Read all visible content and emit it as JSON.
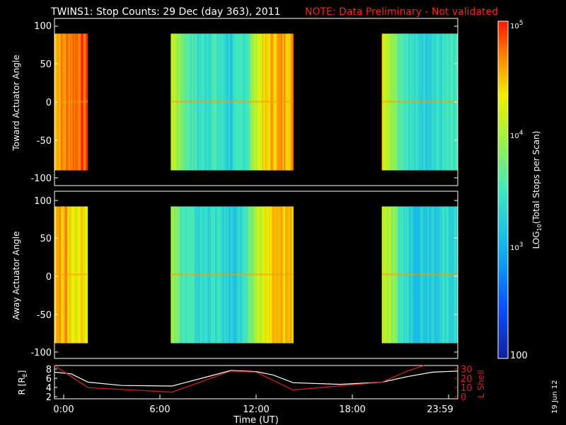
{
  "title": "TWINS1: Stop Counts: 29 Dec (day 363), 2011",
  "note": "NOTE: Data Preliminary - Not validated",
  "colors": {
    "note": "#ff2020",
    "lshell": "#e0201c",
    "rline": "#ffffff",
    "frame": "#ffffff"
  },
  "panels": [
    {
      "ylabel": "Toward Actuator Angle",
      "yticks": [
        "100",
        "50",
        "0",
        "-50",
        "-100"
      ]
    },
    {
      "ylabel": "Away Actuator Angle",
      "yticks": [
        "100",
        "50",
        "0",
        "-50",
        "-100"
      ]
    }
  ],
  "bottom": {
    "ylabel_left": "R [R",
    "ylabel_left_sub": "E",
    "ylabel_left_end": "]",
    "ylabel_right": "L Shell",
    "left_ticks": [
      "8",
      "6",
      "4",
      "2"
    ],
    "right_ticks": [
      "30",
      "20",
      "10",
      "0"
    ]
  },
  "xaxis": {
    "label": "Time (UT)",
    "ticks": [
      "0:00",
      "6:00",
      "12:00",
      "18:00",
      "23:59"
    ]
  },
  "colorbar": {
    "label_pre": "LOG",
    "label_sub": "10",
    "label_post": "(Total Stops per Scan)",
    "ticks": [
      {
        "base": "10",
        "exp": "5"
      },
      {
        "base": "10",
        "exp": "4"
      },
      {
        "base": "10",
        "exp": "3"
      },
      {
        "base": "100",
        "exp": ""
      }
    ]
  },
  "date_stamp": "19 Jun 12",
  "chart_data": {
    "type": "heatmap",
    "x_unit": "hours UT",
    "xlim": [
      0,
      24
    ],
    "ylim_angle": [
      -110,
      110
    ],
    "colorscale_range": [
      100,
      100000
    ],
    "colorscale": "log10",
    "data_segments_hours": [
      [
        -0.2,
        2.0
      ],
      [
        6.9,
        14.2
      ],
      [
        19.5,
        24.0
      ]
    ],
    "angle_coverage": [
      -90,
      90
    ],
    "panels": [
      {
        "name": "Toward Actuator Angle",
        "column_profile": [
          {
            "h": 0.0,
            "v": 4.55
          },
          {
            "h": 0.5,
            "v": 4.65
          },
          {
            "h": 1.2,
            "v": 4.8
          },
          {
            "h": 2.0,
            "v": 4.8
          },
          {
            "h": 6.9,
            "v": 4.2
          },
          {
            "h": 7.5,
            "v": 3.8
          },
          {
            "h": 8.5,
            "v": 3.4
          },
          {
            "h": 9.5,
            "v": 3.5
          },
          {
            "h": 10.5,
            "v": 3.25
          },
          {
            "h": 11.5,
            "v": 3.6
          },
          {
            "h": 12.0,
            "v": 4.2
          },
          {
            "h": 13.0,
            "v": 4.55
          },
          {
            "h": 14.2,
            "v": 4.6
          },
          {
            "h": 19.5,
            "v": 4.3
          },
          {
            "h": 20.5,
            "v": 3.7
          },
          {
            "h": 21.5,
            "v": 3.3
          },
          {
            "h": 22.5,
            "v": 3.35
          },
          {
            "h": 24.0,
            "v": 3.45
          }
        ]
      },
      {
        "name": "Away Actuator Angle",
        "column_profile": [
          {
            "h": 0.0,
            "v": 4.55
          },
          {
            "h": 0.5,
            "v": 4.6
          },
          {
            "h": 1.2,
            "v": 4.3
          },
          {
            "h": 2.0,
            "v": 4.5
          },
          {
            "h": 6.9,
            "v": 4.1
          },
          {
            "h": 7.5,
            "v": 3.55
          },
          {
            "h": 8.5,
            "v": 3.35
          },
          {
            "h": 9.5,
            "v": 3.4
          },
          {
            "h": 10.5,
            "v": 3.2
          },
          {
            "h": 11.5,
            "v": 3.5
          },
          {
            "h": 12.0,
            "v": 4.1
          },
          {
            "h": 13.0,
            "v": 4.45
          },
          {
            "h": 14.2,
            "v": 4.55
          },
          {
            "h": 19.5,
            "v": 4.2
          },
          {
            "h": 20.5,
            "v": 3.5
          },
          {
            "h": 21.5,
            "v": 3.2
          },
          {
            "h": 22.5,
            "v": 3.3
          },
          {
            "h": 24.0,
            "v": 3.35
          }
        ]
      }
    ],
    "orbit": {
      "xlim": [
        0,
        24
      ],
      "R_ylim": [
        2,
        8
      ],
      "L_ylim": [
        0,
        30
      ],
      "series": [
        {
          "name": "R",
          "x": [
            0,
            1,
            2,
            4,
            7,
            9,
            10.5,
            12,
            13,
            14.2,
            17,
            19.5,
            21,
            22.5,
            24
          ],
          "y": [
            6.8,
            6.5,
            5.0,
            4.4,
            4.3,
            5.9,
            7.1,
            6.9,
            6.3,
            4.9,
            4.6,
            5.0,
            6.0,
            6.8,
            7.0
          ]
        },
        {
          "name": "L Shell",
          "x": [
            0,
            2,
            7,
            10.5,
            12,
            14.2,
            19.5,
            21,
            22
          ],
          "y": [
            30,
            10,
            6,
            25,
            24,
            8,
            15,
            25,
            33
          ]
        }
      ]
    }
  }
}
